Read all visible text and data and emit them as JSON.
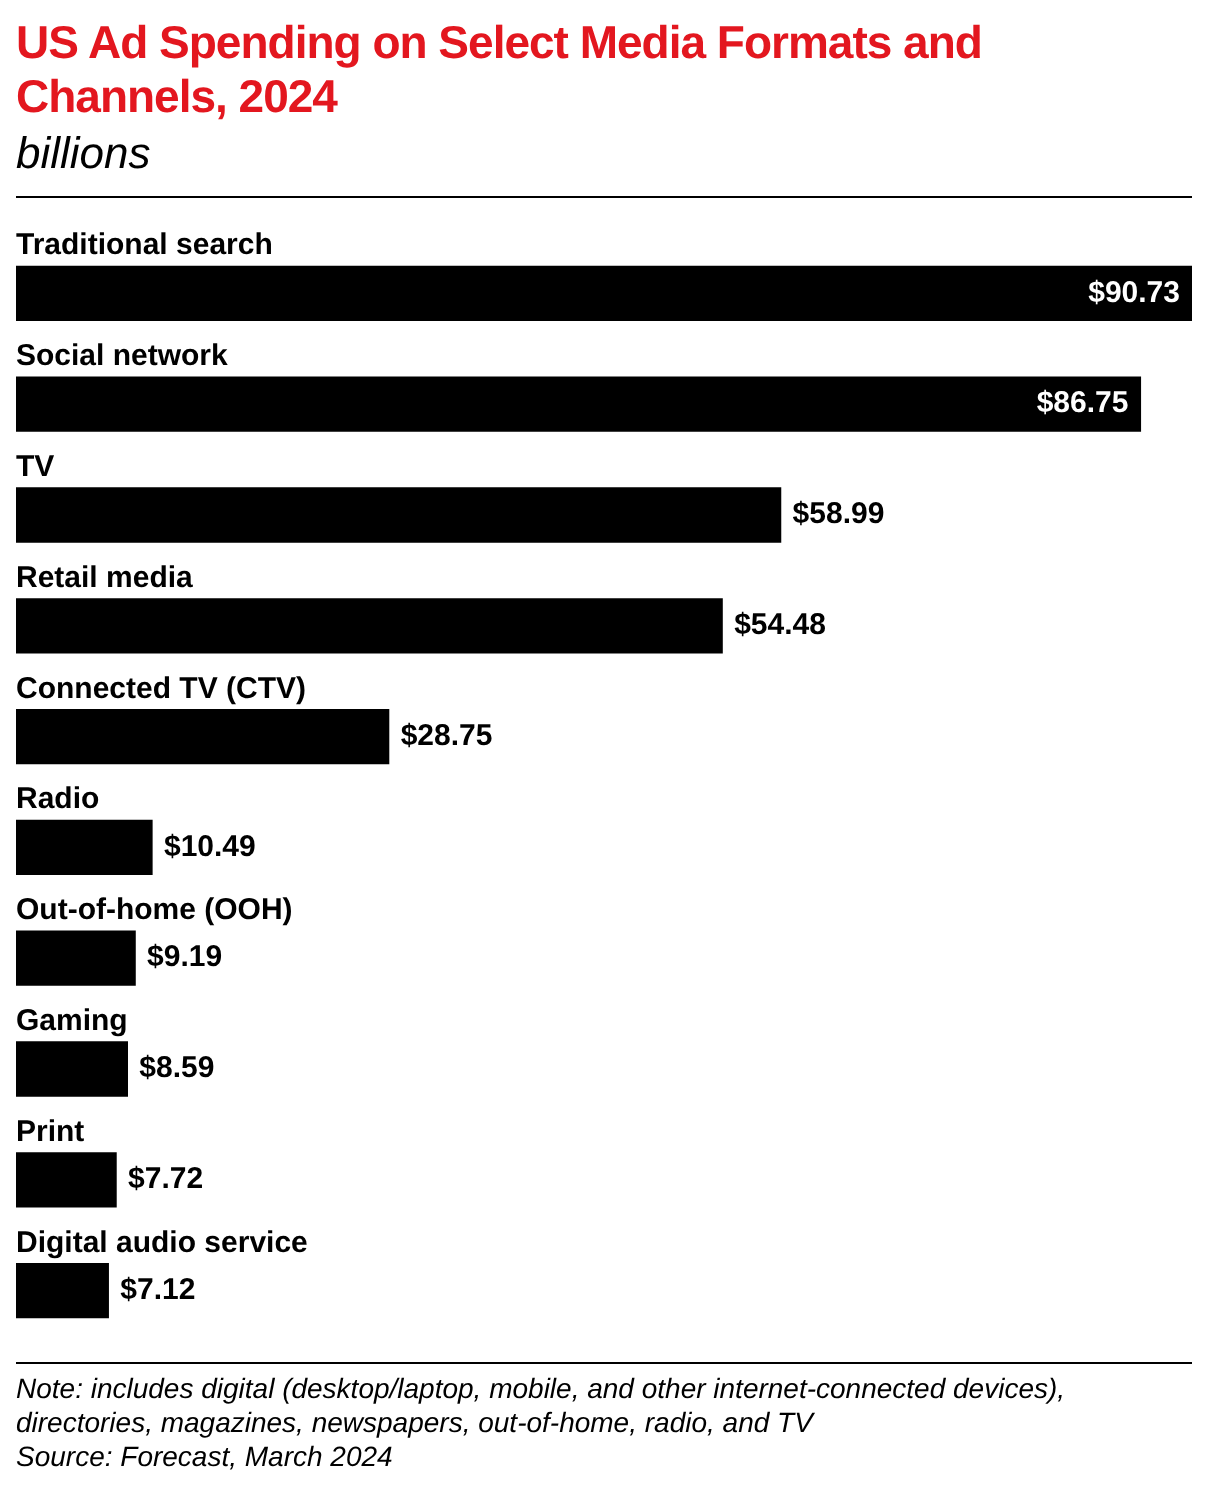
{
  "chart_data": {
    "type": "bar",
    "orientation": "horizontal",
    "title": "US Ad Spending on Select Media Formats and Channels, 2024",
    "subtitle": "billions",
    "categories": [
      "Traditional search",
      "Social network",
      "TV",
      "Retail media",
      "Connected TV (CTV)",
      "Radio",
      "Out-of-home (OOH)",
      "Gaming",
      "Print",
      "Digital audio service"
    ],
    "values": [
      90.73,
      86.75,
      58.99,
      54.48,
      28.75,
      10.49,
      9.19,
      8.59,
      7.72,
      7.12
    ],
    "value_labels": [
      "$90.73",
      "$86.75",
      "$58.99",
      "$54.48",
      "$28.75",
      "$10.49",
      "$9.19",
      "$8.59",
      "$7.72",
      "$7.12"
    ],
    "color": "#000000",
    "tick_labels": "y",
    "annotations": [
      "Note: includes digital (desktop/laptop, mobile, and other internet-connected devices), directories, magazines, newspapers, out-of-home, radio, and TV",
      "Source: Forecast, March 2024"
    ]
  }
}
